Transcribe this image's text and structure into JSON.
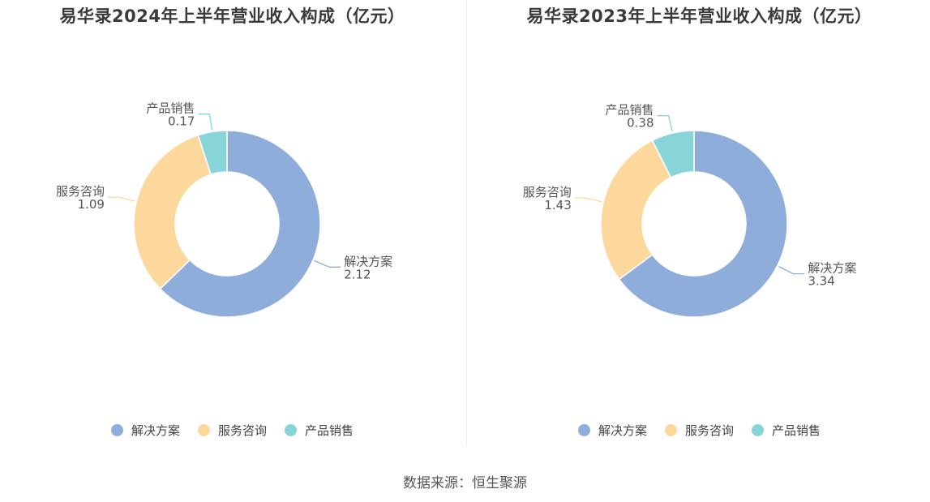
{
  "colors": {
    "解决方案": "#8EADDB",
    "服务咨询": "#FDD89D",
    "产品销售": "#88D5D9"
  },
  "source": "数据来源：恒生聚源",
  "chart_data": [
    {
      "type": "pie",
      "donut": true,
      "title": "易华录2024年上半年营业收入构成（亿元）",
      "categories": [
        "解决方案",
        "服务咨询",
        "产品销售"
      ],
      "values": [
        2.12,
        1.09,
        0.17
      ],
      "value_labels": [
        "2.12",
        "1.09",
        "0.17"
      ],
      "legend": [
        "解决方案",
        "服务咨询",
        "产品销售"
      ],
      "legend_position": "bottom"
    },
    {
      "type": "pie",
      "donut": true,
      "title": "易华录2023年上半年营业收入构成（亿元）",
      "categories": [
        "解决方案",
        "服务咨询",
        "产品销售"
      ],
      "values": [
        3.34,
        1.43,
        0.38
      ],
      "value_labels": [
        "3.34",
        "1.43",
        "0.38"
      ],
      "legend": [
        "解决方案",
        "服务咨询",
        "产品销售"
      ],
      "legend_position": "bottom"
    }
  ]
}
